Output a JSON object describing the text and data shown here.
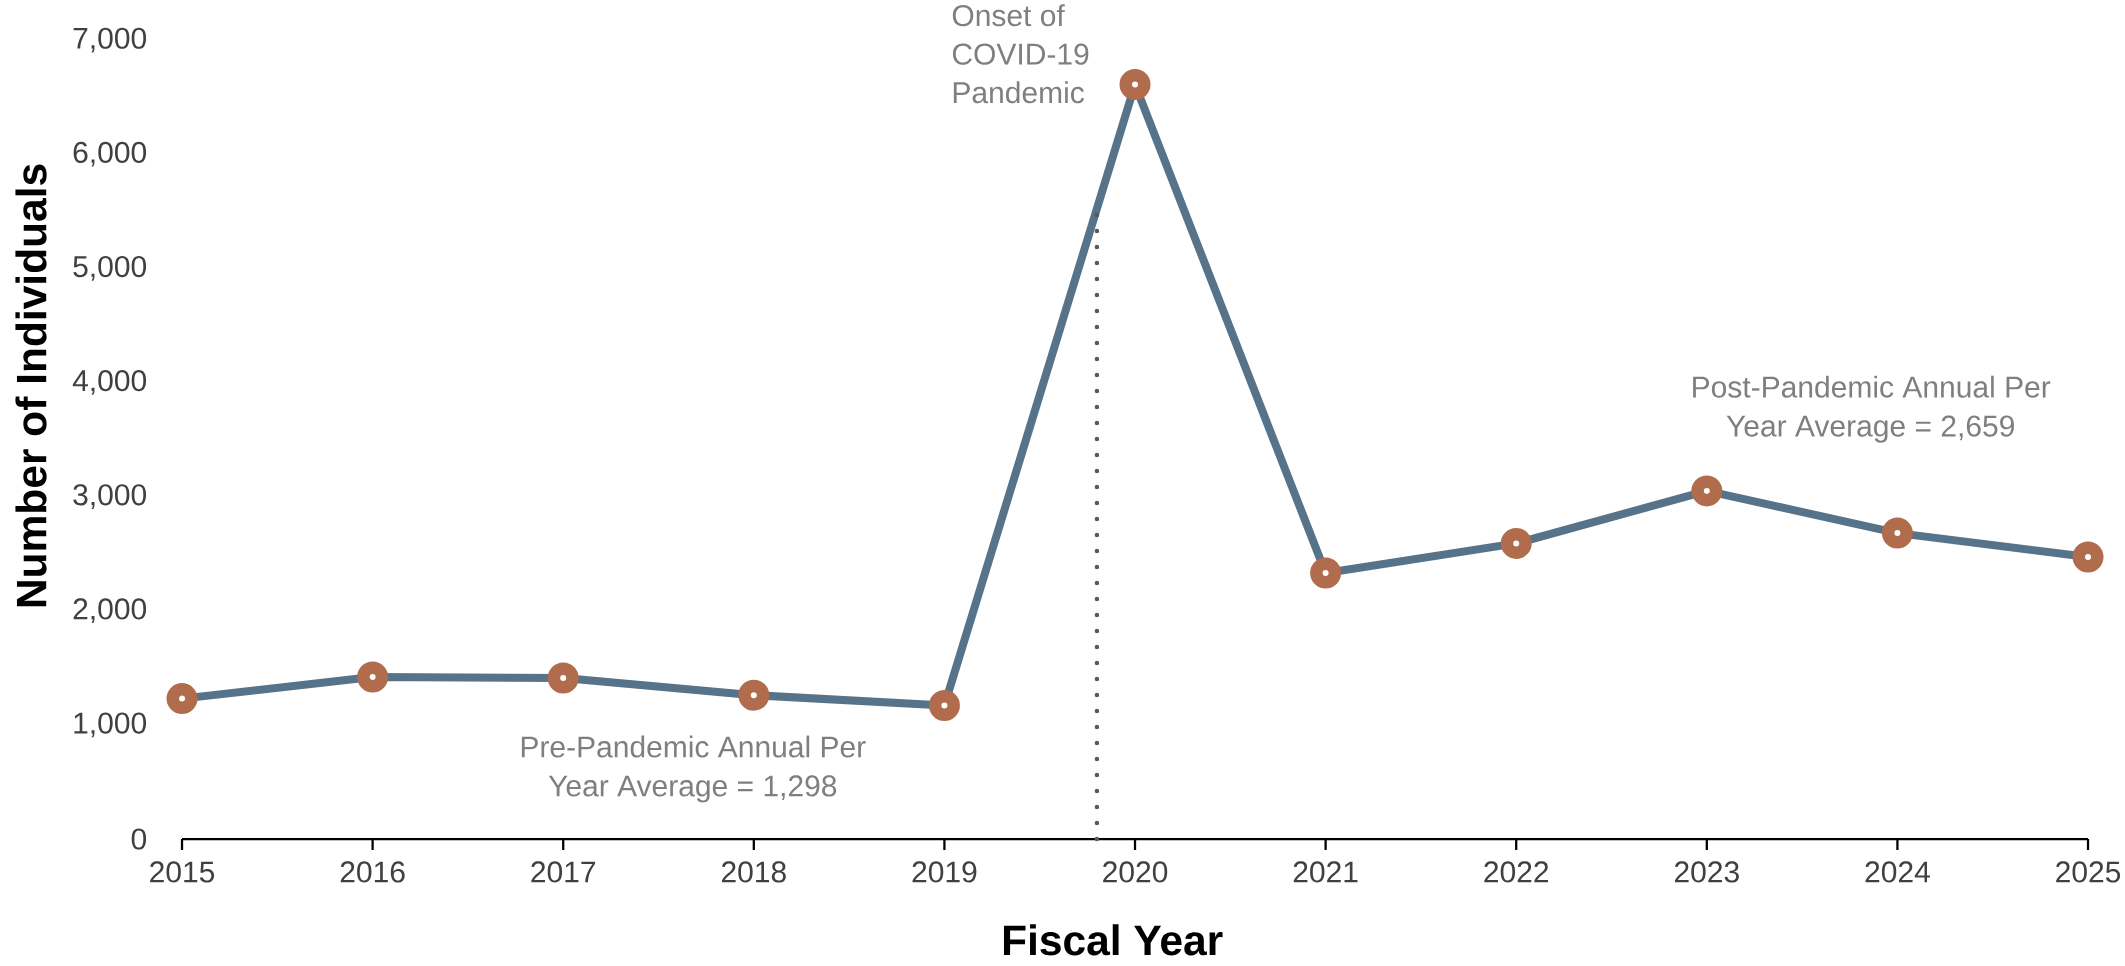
{
  "chart_data": {
    "type": "line",
    "xlabel": "Fiscal Year",
    "ylabel": "Number of Individuals",
    "x": [
      2015,
      2016,
      2017,
      2018,
      2019,
      2020,
      2021,
      2022,
      2023,
      2024,
      2025
    ],
    "values": [
      1230,
      1420,
      1410,
      1260,
      1170,
      6610,
      2330,
      2590,
      3050,
      2680,
      2470
    ],
    "color": "#56738a",
    "colors": [
      "#b06c4c",
      "#b06c4c",
      "#b06c4c",
      "#b06c4c",
      "#b06c4c",
      "#b06c4c",
      "#b06c4c",
      "#b06c4c",
      "#b06c4c",
      "#b06c4c",
      "#b06c4c"
    ],
    "marker": "circle",
    "line_style": "solid",
    "xlim": [
      2015,
      2025
    ],
    "xticks": [
      2015,
      2016,
      2017,
      2018,
      2019,
      2020,
      2021,
      2022,
      2023,
      2024,
      2025
    ],
    "ylim": [
      0,
      7000
    ],
    "yticks": [
      0,
      {
        "value": 1000,
        "label": "1,000"
      },
      {
        "value": 2000,
        "label": "2,000"
      },
      {
        "value": 3000,
        "label": "3,000"
      },
      {
        "value": 4000,
        "label": "4,000"
      },
      {
        "value": 5000,
        "label": "5,000"
      },
      {
        "value": 6000,
        "label": "6,000"
      },
      {
        "value": 7000,
        "label": "7,000"
      }
    ],
    "ref_lines": [
      {
        "axis": "x",
        "value": 2019.8,
        "label": "Onset of COVID-19 Pandemic",
        "color": "#595959",
        "line_style": "dotted"
      }
    ],
    "annotations": [
      "Pre-Pandemic Annual Per Year Average = 1,298",
      "Post-Pandemic Annual Per Year Average = 2,659"
    ]
  }
}
